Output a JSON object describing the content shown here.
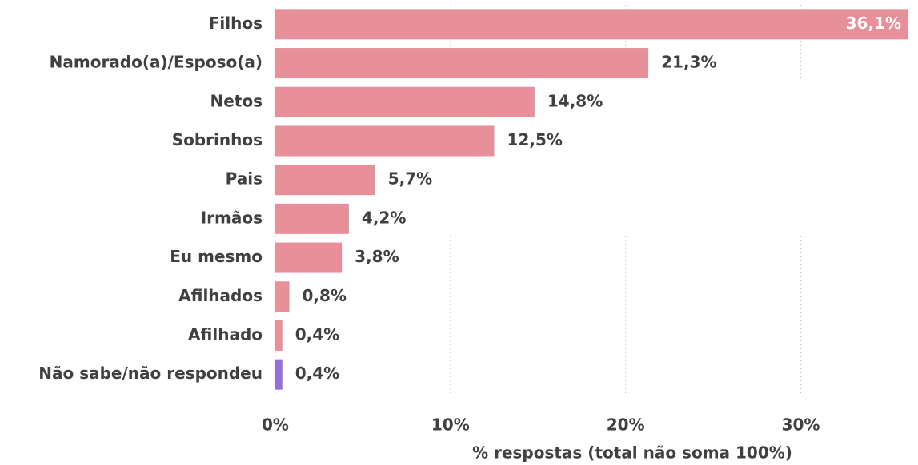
{
  "chart_data": {
    "type": "bar",
    "orientation": "horizontal",
    "categories": [
      "Filhos",
      "Namorado(a)/Esposo(a)",
      "Netos",
      "Sobrinhos",
      "Pais",
      "Irmãos",
      "Eu mesmo",
      "Afilhados",
      "Afilhado",
      "Não sabe/não respondeu"
    ],
    "values": [
      36.1,
      21.3,
      14.8,
      12.5,
      5.7,
      4.2,
      3.8,
      0.8,
      0.4,
      0.4
    ],
    "value_labels": [
      "36,1%",
      "21,3%",
      "14,8%",
      "12,5%",
      "5,7%",
      "4,2%",
      "3,8%",
      "0,8%",
      "0,4%",
      "0,4%"
    ],
    "colors": [
      "#e8909a",
      "#e8909a",
      "#e8909a",
      "#e8909a",
      "#e8909a",
      "#e8909a",
      "#e8909a",
      "#e8909a",
      "#e8909a",
      "#9370d8"
    ],
    "xlabel": "% respostas (total não soma 100%)",
    "xlim": [
      0,
      36.1
    ],
    "xticks": [
      {
        "value": 0,
        "label": "0%"
      },
      {
        "value": 10,
        "label": "10%"
      },
      {
        "value": 20,
        "label": "20%"
      },
      {
        "value": 30,
        "label": "30%"
      }
    ],
    "grid": true
  }
}
